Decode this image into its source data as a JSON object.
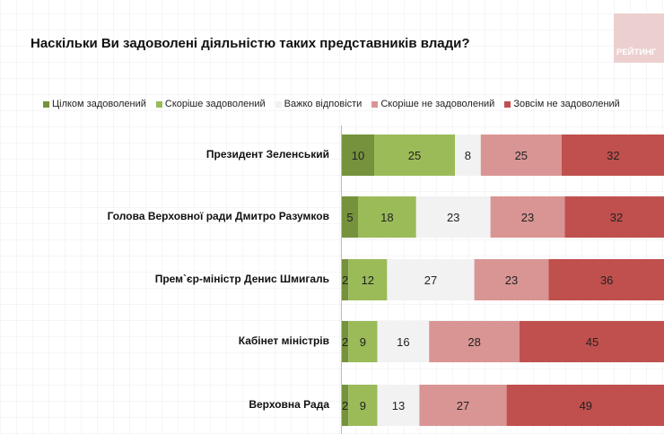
{
  "title": "Наскільки Ви задоволені діяльністю таких представників влади?",
  "logo_text": "РЕЙТИНГ",
  "chart_data": {
    "type": "bar",
    "orientation": "horizontal",
    "stacked": true,
    "title": "Наскільки Ви задоволені діяльністю таких представників влади?",
    "categories": [
      "Президент Зеленський",
      "Голова Верховної ради Дмитро Разумков",
      "Прем`єр-міністр Денис Шмигаль",
      "Кабінет міністрів",
      "Верховна Рада"
    ],
    "series": [
      {
        "name": "Цілком задоволений",
        "color": "#76923c",
        "values": [
          10,
          5,
          2,
          2,
          2
        ]
      },
      {
        "name": "Скоріше задоволений",
        "color": "#9bbb59",
        "values": [
          25,
          18,
          12,
          9,
          9
        ]
      },
      {
        "name": "Важко відповісти",
        "color": "#f2f2f2",
        "values": [
          8,
          23,
          27,
          16,
          13
        ]
      },
      {
        "name": "Скоріше не задоволений",
        "color": "#d99594",
        "values": [
          25,
          23,
          23,
          28,
          27
        ]
      },
      {
        "name": "Зовсім не задоволений",
        "color": "#c0504d",
        "values": [
          32,
          32,
          36,
          45,
          49
        ]
      }
    ],
    "xlim": [
      0,
      100
    ],
    "data_labels": true,
    "legend_position": "top",
    "grid": false
  }
}
